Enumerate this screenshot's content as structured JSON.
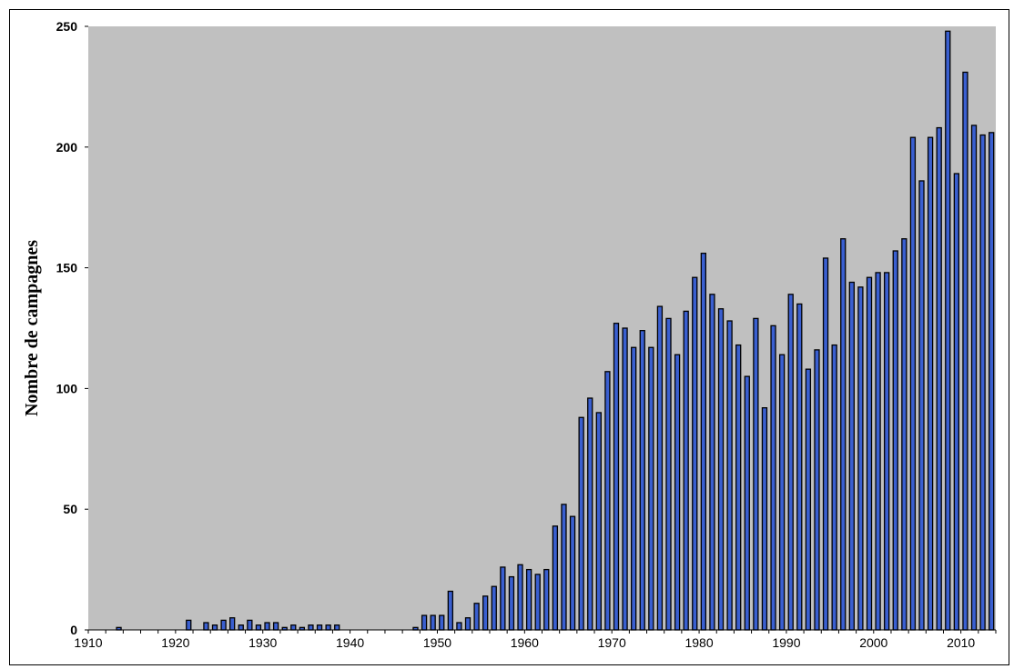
{
  "chart_data": {
    "type": "bar",
    "title": "",
    "xlabel": "",
    "ylabel": "Nombre de campagnes",
    "xlim": [
      1910,
      2014
    ],
    "ylim": [
      0,
      250
    ],
    "x_ticks": [
      1910,
      1920,
      1930,
      1940,
      1950,
      1960,
      1970,
      1980,
      1990,
      2000,
      2010
    ],
    "y_ticks": [
      0,
      50,
      100,
      150,
      200,
      250
    ],
    "grid": false,
    "legend": false,
    "colors": {
      "plot_background": "#c0c0c0",
      "bar_fill": "#3a5fd0",
      "bar_edge": "#000000"
    },
    "x": [
      1913,
      1921,
      1923,
      1924,
      1925,
      1926,
      1927,
      1928,
      1929,
      1930,
      1931,
      1932,
      1933,
      1934,
      1935,
      1936,
      1937,
      1938,
      1947,
      1948,
      1949,
      1950,
      1951,
      1952,
      1953,
      1954,
      1955,
      1956,
      1957,
      1958,
      1959,
      1960,
      1961,
      1962,
      1963,
      1964,
      1965,
      1966,
      1967,
      1968,
      1969,
      1970,
      1971,
      1972,
      1973,
      1974,
      1975,
      1976,
      1977,
      1978,
      1979,
      1980,
      1981,
      1982,
      1983,
      1984,
      1985,
      1986,
      1987,
      1988,
      1989,
      1990,
      1991,
      1992,
      1993,
      1994,
      1995,
      1996,
      1997,
      1998,
      1999,
      2000,
      2001,
      2002,
      2003,
      2004,
      2005,
      2006,
      2007,
      2008,
      2009,
      2010,
      2011,
      2012,
      2013
    ],
    "values": [
      1,
      4,
      3,
      2,
      4,
      5,
      2,
      4,
      2,
      3,
      3,
      1,
      2,
      1,
      2,
      2,
      2,
      2,
      1,
      6,
      6,
      6,
      16,
      3,
      5,
      11,
      14,
      18,
      26,
      22,
      27,
      25,
      23,
      25,
      43,
      52,
      47,
      88,
      96,
      90,
      107,
      127,
      125,
      117,
      124,
      117,
      134,
      129,
      114,
      132,
      146,
      156,
      139,
      133,
      128,
      118,
      105,
      129,
      92,
      126,
      114,
      139,
      135,
      108,
      116,
      154,
      118,
      162,
      144,
      142,
      146,
      148,
      148,
      157,
      162,
      204,
      186,
      204,
      208,
      248,
      189,
      231,
      209,
      205,
      206
    ]
  }
}
